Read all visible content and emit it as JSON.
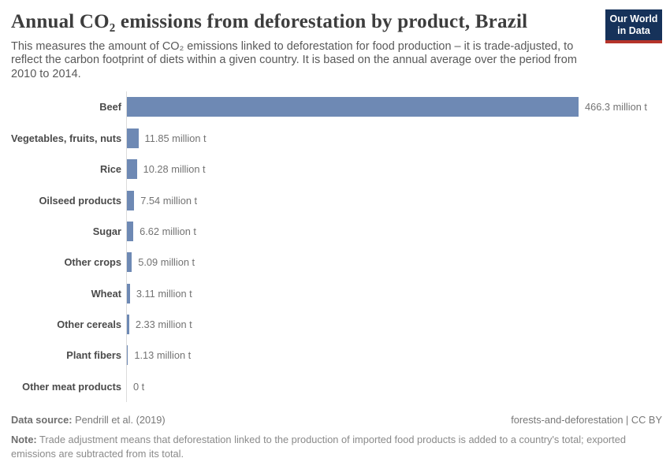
{
  "header": {
    "title": "Annual CO₂ emissions from deforestation by product, Brazil",
    "subtitle": "This measures the amount of CO₂ emissions linked to deforestation for food production – it is trade-adjusted, to reflect the carbon footprint of diets within a given country. It is based on the annual average over the period from 2010 to 2014.",
    "logo": {
      "line1": "Our World",
      "line2": "in Data",
      "bg_color": "#16325a",
      "accent_color": "#b5332a"
    }
  },
  "chart_data": {
    "type": "bar",
    "orientation": "horizontal",
    "title": "Annual CO₂ emissions from deforestation by product, Brazil",
    "categories": [
      "Beef",
      "Vegetables, fruits, nuts",
      "Rice",
      "Oilseed products",
      "Sugar",
      "Other crops",
      "Wheat",
      "Other cereals",
      "Plant fibers",
      "Other meat products"
    ],
    "values": [
      466.3,
      11.85,
      10.28,
      7.54,
      6.62,
      5.09,
      3.11,
      2.33,
      1.13,
      0
    ],
    "value_labels": [
      "466.3 million t",
      "11.85 million t",
      "10.28 million t",
      "7.54 million t",
      "6.62 million t",
      "5.09 million t",
      "3.11 million t",
      "2.33 million t",
      "1.13 million t",
      "0 t"
    ],
    "unit": "million t",
    "xlim": [
      0,
      466.3
    ],
    "grid": false,
    "legend": false,
    "bar_color": "#6e89b4",
    "axis_line_color": "#dcdcdc"
  },
  "footer": {
    "datasource_label": "Data source:",
    "datasource_value": " Pendrill et al. (2019)",
    "license": "forests-and-deforestation | CC BY",
    "note_label": "Note:",
    "note_text": " Trade adjustment means that deforestation linked to the production of imported food products is added to a country's total; exported emissions are subtracted from its total."
  }
}
